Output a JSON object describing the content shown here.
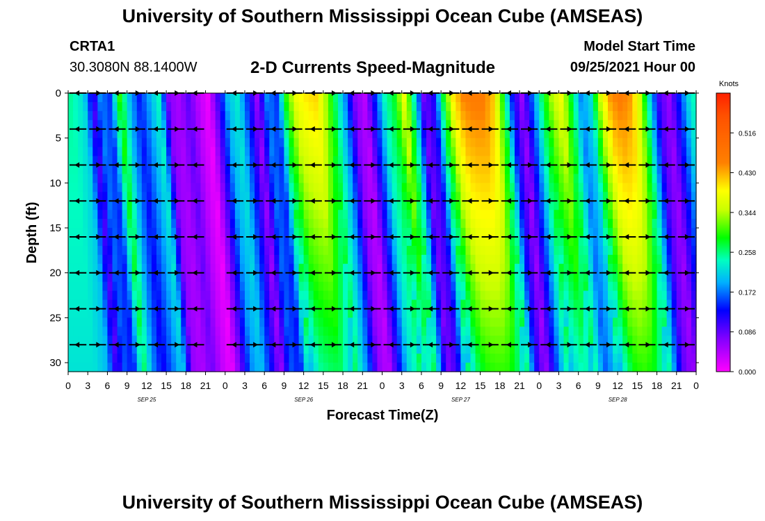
{
  "header": {
    "title": "University of Southern Mississippi Ocean Cube (AMSEAS)",
    "station": "CRTA1",
    "coords": "30.3080N  88.1400W",
    "plot_title": "2-D Currents Speed-Magnitude",
    "start_label": "Model Start Time",
    "start_value": "09/25/2021 Hour 00"
  },
  "footer": {
    "title": "University of Southern Mississippi Ocean Cube (AMSEAS)"
  },
  "chart_data": {
    "type": "heatmap",
    "title": "2-D Currents Speed-Magnitude",
    "xlabel": "Forecast Time(Z)",
    "ylabel": "Depth (ft)",
    "x_range_hours": [
      0,
      96
    ],
    "y_range_ft": [
      0,
      31
    ],
    "x_tick_labels": [
      "0",
      "3",
      "6",
      "9",
      "12",
      "15",
      "18",
      "21",
      "0",
      "3",
      "6",
      "9",
      "12",
      "15",
      "18",
      "21",
      "0",
      "3",
      "6",
      "9",
      "12",
      "15",
      "18",
      "21",
      "0",
      "3",
      "6",
      "9",
      "12",
      "15",
      "18",
      "21",
      "0"
    ],
    "y_ticks": [
      0,
      5,
      10,
      15,
      20,
      25,
      30
    ],
    "date_labels": [
      {
        "label": "SEP 25",
        "hour": 12
      },
      {
        "label": "SEP 26",
        "hour": 36
      },
      {
        "label": "SEP 27",
        "hour": 60
      },
      {
        "label": "SEP 28",
        "hour": 84
      }
    ],
    "colorbar": {
      "unit": "Knots",
      "min": 0.0,
      "max": 0.602,
      "ticks": [
        "0.516",
        "0.430",
        "0.344",
        "0.258",
        "0.172",
        "0.086",
        "0.000"
      ],
      "tick_values": [
        0.516,
        0.43,
        0.344,
        0.258,
        0.172,
        0.086,
        0.0
      ]
    },
    "speed_profiles": [
      {
        "hour": 0,
        "knots": 0.25
      },
      {
        "hour": 2,
        "knots": 0.22
      },
      {
        "hour": 3.5,
        "knots": 0.1
      },
      {
        "hour": 4.5,
        "knots": 0.18
      },
      {
        "hour": 6,
        "knots": 0.15
      },
      {
        "hour": 7.5,
        "knots": 0.3
      },
      {
        "hour": 9,
        "knots": 0.2
      },
      {
        "hour": 10.5,
        "knots": 0.14
      },
      {
        "hour": 12,
        "knots": 0.19
      },
      {
        "hour": 13.5,
        "knots": 0.24
      },
      {
        "hour": 15,
        "knots": 0.07
      },
      {
        "hour": 16.5,
        "knots": 0.05
      },
      {
        "hour": 18,
        "knots": 0.09
      },
      {
        "hour": 19.5,
        "knots": 0.04
      },
      {
        "hour": 21,
        "knots": 0.01
      },
      {
        "hour": 22.5,
        "knots": 0.1
      },
      {
        "hour": 24,
        "knots": 0.2
      },
      {
        "hour": 25.5,
        "knots": 0.23
      },
      {
        "hour": 27,
        "knots": 0.15
      },
      {
        "hour": 28.5,
        "knots": 0.06
      },
      {
        "hour": 30,
        "knots": 0.18
      },
      {
        "hour": 31.5,
        "knots": 0.15
      },
      {
        "hour": 33,
        "knots": 0.3
      },
      {
        "hour": 34.5,
        "knots": 0.38
      },
      {
        "hour": 36,
        "knots": 0.4
      },
      {
        "hour": 37.5,
        "knots": 0.41
      },
      {
        "hour": 39,
        "knots": 0.34
      },
      {
        "hour": 40.5,
        "knots": 0.26
      },
      {
        "hour": 42,
        "knots": 0.18
      },
      {
        "hour": 43.5,
        "knots": 0.07
      },
      {
        "hour": 45,
        "knots": 0.04
      },
      {
        "hour": 46.5,
        "knots": 0.14
      },
      {
        "hour": 48,
        "knots": 0.24
      },
      {
        "hour": 49.5,
        "knots": 0.28
      },
      {
        "hour": 51,
        "knots": 0.38
      },
      {
        "hour": 52.5,
        "knots": 0.24
      },
      {
        "hour": 54,
        "knots": 0.08
      },
      {
        "hour": 55.5,
        "knots": 0.12
      },
      {
        "hour": 57,
        "knots": 0.28
      },
      {
        "hour": 58.5,
        "knots": 0.4
      },
      {
        "hour": 60,
        "knots": 0.45
      },
      {
        "hour": 61.5,
        "knots": 0.46
      },
      {
        "hour": 63,
        "knots": 0.46
      },
      {
        "hour": 64.5,
        "knots": 0.42
      },
      {
        "hour": 66,
        "knots": 0.3
      },
      {
        "hour": 67.5,
        "knots": 0.14
      },
      {
        "hour": 69,
        "knots": 0.06
      },
      {
        "hour": 70.5,
        "knots": 0.16
      },
      {
        "hour": 72,
        "knots": 0.26
      },
      {
        "hour": 73.5,
        "knots": 0.34
      },
      {
        "hour": 75,
        "knots": 0.38
      },
      {
        "hour": 76.5,
        "knots": 0.28
      },
      {
        "hour": 78,
        "knots": 0.18
      },
      {
        "hour": 79.5,
        "knots": 0.22
      },
      {
        "hour": 81,
        "knots": 0.36
      },
      {
        "hour": 82.5,
        "knots": 0.44
      },
      {
        "hour": 84,
        "knots": 0.46
      },
      {
        "hour": 85.5,
        "knots": 0.44
      },
      {
        "hour": 87,
        "knots": 0.36
      },
      {
        "hour": 88.5,
        "knots": 0.22
      },
      {
        "hour": 90,
        "knots": 0.1
      },
      {
        "hour": 91.5,
        "knots": 0.06
      },
      {
        "hour": 93,
        "knots": 0.14
      },
      {
        "hour": 94.5,
        "knots": 0.22
      },
      {
        "hour": 96,
        "knots": 0.26
      }
    ],
    "vector_rows_depth_ft": [
      0,
      4,
      8,
      12,
      16,
      20,
      24,
      28
    ],
    "vector_columns_hour": [
      0,
      3,
      6,
      9,
      12,
      15,
      18,
      21,
      24,
      27,
      30,
      33,
      36,
      39,
      42,
      45,
      48,
      51,
      54,
      57,
      60,
      63,
      66,
      69,
      72,
      75,
      78,
      81,
      84,
      87,
      90,
      93,
      96
    ]
  }
}
